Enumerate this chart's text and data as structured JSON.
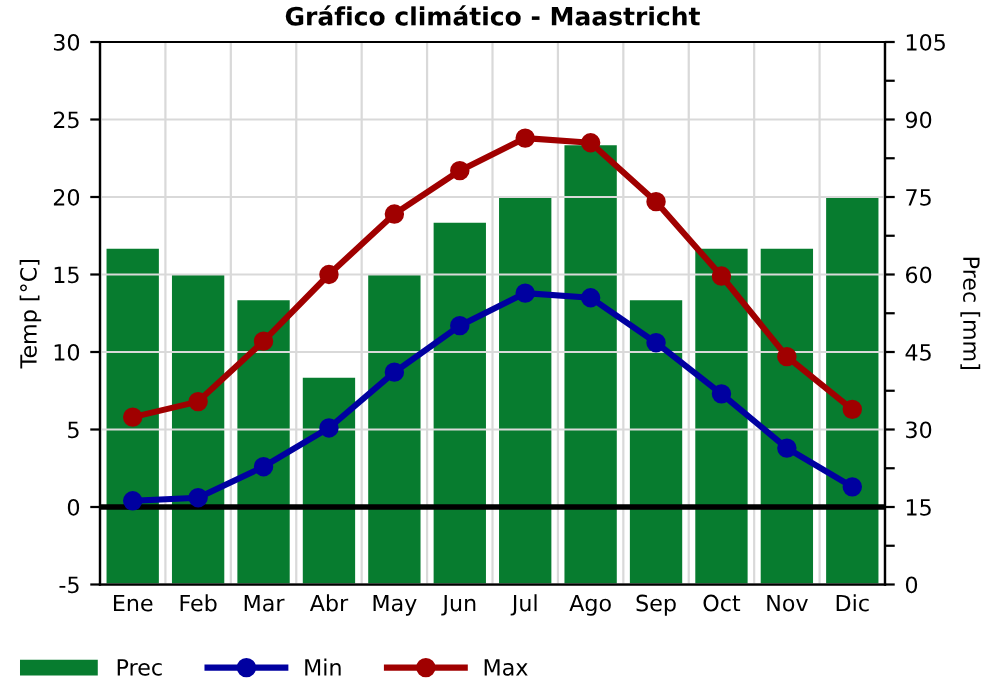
{
  "chart_data": {
    "type": "bar",
    "title": "Gráfico climático - Maastricht",
    "ylabel": "Temp [°C]",
    "y2label": "Prec [mm]",
    "categories": [
      "Ene",
      "Feb",
      "Mar",
      "Abr",
      "May",
      "Jun",
      "Jul",
      "Ago",
      "Sep",
      "Oct",
      "Nov",
      "Dic"
    ],
    "series": [
      {
        "name": "Prec",
        "axis": "y2",
        "color": "#077c2f",
        "values": [
          65,
          60,
          55,
          40,
          60,
          70,
          75,
          85,
          55,
          65,
          65,
          75
        ]
      },
      {
        "name": "Min",
        "type": "line",
        "axis": "y",
        "color": "#0000a0",
        "marker": "circle",
        "values": [
          0.4,
          0.6,
          2.6,
          5.1,
          8.7,
          11.7,
          13.8,
          13.5,
          10.6,
          7.3,
          3.8,
          1.3
        ]
      },
      {
        "name": "Max",
        "type": "line",
        "axis": "y",
        "color": "#a00000",
        "marker": "circle",
        "values": [
          5.8,
          6.8,
          10.7,
          15.0,
          18.9,
          21.7,
          23.8,
          23.5,
          19.7,
          14.9,
          9.7,
          6.3
        ]
      }
    ],
    "ylim": [
      -5,
      30
    ],
    "yticks": [
      -5,
      0,
      5,
      10,
      15,
      20,
      25,
      30
    ],
    "y2lim": [
      0,
      105
    ],
    "y2ticks": [
      0,
      {
        "value": 7.5,
        "label": null
      },
      15,
      {
        "value": 22.5,
        "label": null
      },
      30,
      {
        "value": 37.5,
        "label": null
      },
      45,
      {
        "value": 52.5,
        "label": null
      },
      60,
      {
        "value": 67.5,
        "label": null
      },
      75,
      {
        "value": 82.5,
        "label": null
      },
      90,
      {
        "value": 97.5,
        "label": null
      },
      105
    ],
    "ref_lines": [
      {
        "axis": "y",
        "value": 0,
        "color": "#000000"
      }
    ],
    "grid": true,
    "legend": "bottom left"
  }
}
